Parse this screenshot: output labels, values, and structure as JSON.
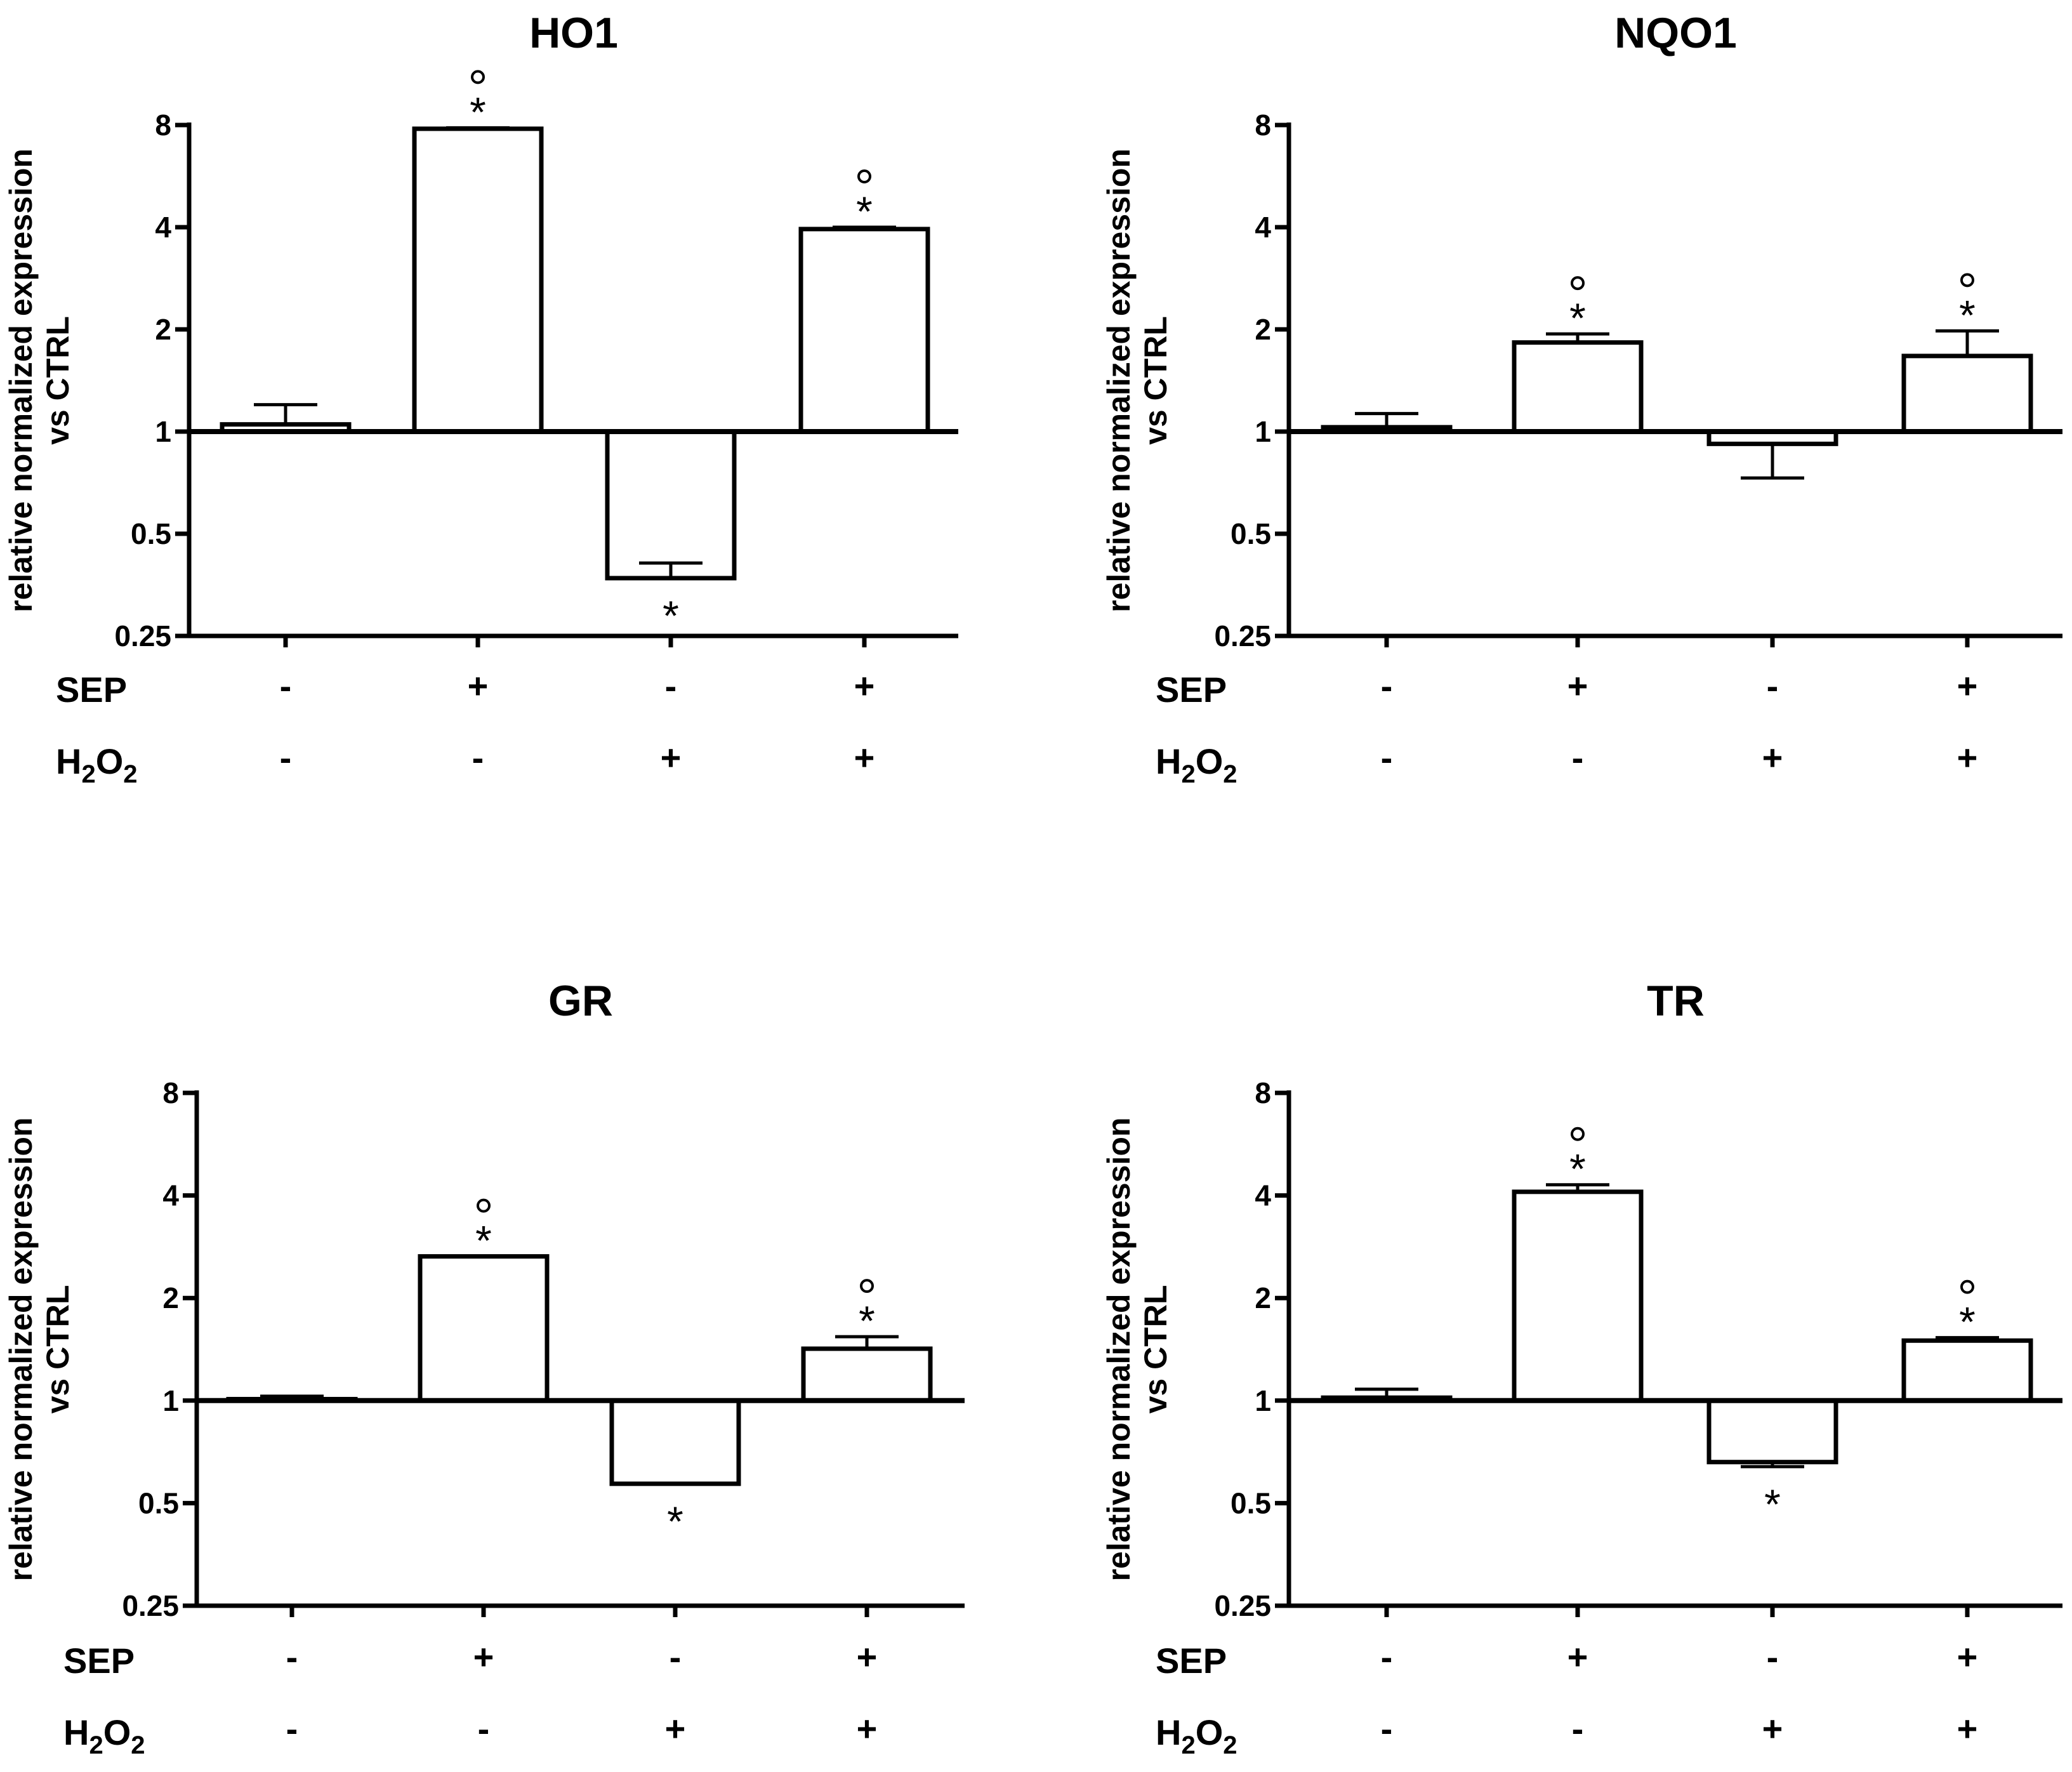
{
  "figure": {
    "row_labels": [
      "SEP",
      "H2O2"
    ],
    "conditions": [
      {
        "SEP": "-",
        "H2O2": "-"
      },
      {
        "SEP": "+",
        "H2O2": "-"
      },
      {
        "SEP": "-",
        "H2O2": "+"
      },
      {
        "SEP": "+",
        "H2O2": "+"
      }
    ],
    "colors": {
      "ink": "#000000",
      "bar_fill": "#ffffff"
    }
  },
  "chart_data": [
    {
      "type": "bar",
      "title": "HO1",
      "ylabel": "relative normalized expression vs CTRL",
      "ylabel_lines": [
        "relative normalized expression",
        "vs CTRL"
      ],
      "yscale": "log2",
      "baseline": 1,
      "ylim": [
        0.25,
        8
      ],
      "yticks": [
        0.25,
        0.5,
        1,
        2,
        4,
        8
      ],
      "ytick_labels": [
        "0.25",
        "0.5",
        "1",
        "2",
        "4",
        "8"
      ],
      "categories": [
        "CTRL",
        "SEP",
        "H2O2",
        "SEP+H2O2"
      ],
      "values": [
        1.05,
        7.8,
        0.37,
        3.95
      ],
      "error_tops": [
        1.2,
        7.85,
        0.41,
        4.0
      ],
      "star": [
        false,
        true,
        true,
        true
      ],
      "circle": [
        false,
        true,
        false,
        true
      ]
    },
    {
      "type": "bar",
      "title": "NQO1",
      "ylabel": "relative normalized expression vs CTRL",
      "ylabel_lines": [
        "relative normalized expression",
        "vs CTRL"
      ],
      "yscale": "log2",
      "baseline": 1,
      "ylim": [
        0.25,
        8
      ],
      "yticks": [
        0.25,
        0.5,
        1,
        2,
        4,
        8
      ],
      "ytick_labels": [
        "0.25",
        "0.5",
        "1",
        "2",
        "4",
        "8"
      ],
      "categories": [
        "CTRL",
        "SEP",
        "H2O2",
        "SEP+H2O2"
      ],
      "values": [
        1.03,
        1.83,
        0.92,
        1.67
      ],
      "error_tops": [
        1.13,
        1.94,
        0.73,
        1.98
      ],
      "star": [
        false,
        true,
        false,
        true
      ],
      "circle": [
        false,
        true,
        false,
        true
      ]
    },
    {
      "type": "bar",
      "title": "GR",
      "ylabel": "relative normalized expression vs CTRL",
      "ylabel_lines": [
        "relative normalized expression",
        "vs CTRL"
      ],
      "yscale": "log2",
      "baseline": 1,
      "ylim": [
        0.25,
        8
      ],
      "yticks": [
        0.25,
        0.5,
        1,
        2,
        4,
        8
      ],
      "ytick_labels": [
        "0.25",
        "0.5",
        "1",
        "2",
        "4",
        "8"
      ],
      "categories": [
        "CTRL",
        "SEP",
        "H2O2",
        "SEP+H2O2"
      ],
      "values": [
        1.01,
        2.65,
        0.57,
        1.42
      ],
      "error_tops": [
        1.03,
        2.65,
        0.57,
        1.54
      ],
      "star": [
        false,
        true,
        true,
        true
      ],
      "circle": [
        false,
        true,
        false,
        true
      ]
    },
    {
      "type": "bar",
      "title": "TR",
      "ylabel": "relative normalized expression vs CTRL",
      "ylabel_lines": [
        "relative normalized expression",
        "vs CTRL"
      ],
      "yscale": "log2",
      "baseline": 1,
      "ylim": [
        0.25,
        8
      ],
      "yticks": [
        0.25,
        0.5,
        1,
        2,
        4,
        8
      ],
      "ytick_labels": [
        "0.25",
        "0.5",
        "1",
        "2",
        "4",
        "8"
      ],
      "categories": [
        "CTRL",
        "SEP",
        "H2O2",
        "SEP+H2O2"
      ],
      "values": [
        1.02,
        4.1,
        0.66,
        1.5
      ],
      "error_tops": [
        1.08,
        4.3,
        0.64,
        1.53
      ],
      "star": [
        false,
        true,
        true,
        true
      ],
      "circle": [
        false,
        true,
        false,
        true
      ]
    }
  ]
}
